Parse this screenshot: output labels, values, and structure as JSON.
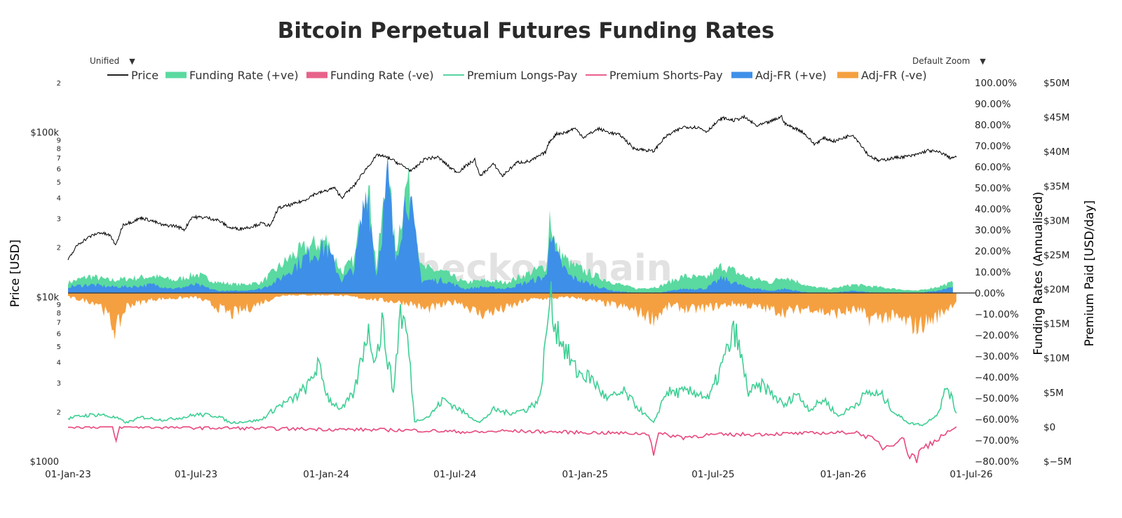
{
  "controls": {
    "mode_select": "Unified",
    "zoom_select": "Default Zoom"
  },
  "watermark": "checkonchain",
  "colors": {
    "price": "#000000",
    "funding_pos": "#5ad9a0",
    "funding_neg": "#e8628a",
    "premium_longs": "#3ecf94",
    "premium_shorts": "#e8497c",
    "adj_pos": "#3e8fe8",
    "adj_neg": "#f5a040",
    "zero_line": "#444444"
  },
  "chart_data": {
    "type": "line",
    "title": "Bitcoin Perpetual Futures Funding Rates",
    "legend_position": "top",
    "legend": [
      "Price",
      "Funding Rate (+ve)",
      "Funding Rate (-ve)",
      "Premium Longs-Pay",
      "Premium Shorts-Pay",
      "Adj-FR (+ve)",
      "Adj-FR (-ve)"
    ],
    "x_axis": {
      "ticks": [
        "01-Jan-23",
        "01-Jul-23",
        "01-Jan-24",
        "01-Jul-24",
        "01-Jan-25",
        "01-Jul-25",
        "01-Jan-26",
        "01-Jul-26"
      ],
      "range": [
        "2023-01-01",
        "2026-07-01"
      ]
    },
    "y_axis_price": {
      "label": "Price [USD]",
      "scale": "log",
      "range": [
        1000,
        200000
      ],
      "major_ticks": [
        {
          "value": 1000,
          "label": "$1000"
        },
        {
          "value": 10000,
          "label": "$10k"
        },
        {
          "value": 100000,
          "label": "$100k"
        }
      ],
      "minor_ticks": [
        {
          "value": 2000,
          "label": "2"
        },
        {
          "value": 3000,
          "label": "3"
        },
        {
          "value": 4000,
          "label": "4"
        },
        {
          "value": 5000,
          "label": "5"
        },
        {
          "value": 6000,
          "label": "6"
        },
        {
          "value": 7000,
          "label": "7"
        },
        {
          "value": 8000,
          "label": "8"
        },
        {
          "value": 9000,
          "label": "9"
        },
        {
          "value": 20000,
          "label": "2"
        },
        {
          "value": 30000,
          "label": "3"
        },
        {
          "value": 40000,
          "label": "4"
        },
        {
          "value": 50000,
          "label": "5"
        },
        {
          "value": 60000,
          "label": "6"
        },
        {
          "value": 70000,
          "label": "7"
        },
        {
          "value": 80000,
          "label": "8"
        },
        {
          "value": 90000,
          "label": "9"
        },
        {
          "value": 200000,
          "label": "2"
        }
      ]
    },
    "y_axis_funding": {
      "label": "Funding Rates (Annualised)",
      "range": [
        -80,
        100
      ],
      "ticks": [
        "100.00%",
        "90.00%",
        "80.00%",
        "70.00%",
        "60.00%",
        "50.00%",
        "40.00%",
        "30.00%",
        "20.00%",
        "10.00%",
        "0.00%",
        "−10.00%",
        "−20.00%",
        "−30.00%",
        "−40.00%",
        "−50.00%",
        "−60.00%",
        "−70.00%",
        "−80.00%"
      ]
    },
    "y_axis_premium": {
      "label": "Premium Paid [USD/day]",
      "range": [
        -5,
        50
      ],
      "ticks": [
        "$50M",
        "$45M",
        "$40M",
        "$35M",
        "$30M",
        "$25M",
        "$20M",
        "$15M",
        "$10M",
        "$5M",
        "$0",
        "$−5M"
      ]
    },
    "price_series": {
      "name": "Price",
      "x": [
        "2023-01-01",
        "2023-01-15",
        "2023-02-01",
        "2023-02-15",
        "2023-03-01",
        "2023-03-10",
        "2023-03-20",
        "2023-04-01",
        "2023-04-15",
        "2023-05-01",
        "2023-05-15",
        "2023-06-01",
        "2023-06-15",
        "2023-06-25",
        "2023-07-15",
        "2023-08-01",
        "2023-08-18",
        "2023-09-01",
        "2023-09-15",
        "2023-10-01",
        "2023-10-15",
        "2023-10-25",
        "2023-11-15",
        "2023-12-01",
        "2023-12-15",
        "2024-01-01",
        "2024-01-12",
        "2024-01-23",
        "2024-02-10",
        "2024-02-28",
        "2024-03-14",
        "2024-04-01",
        "2024-04-15",
        "2024-05-01",
        "2024-05-20",
        "2024-06-07",
        "2024-06-24",
        "2024-07-05",
        "2024-07-29",
        "2024-08-05",
        "2024-08-25",
        "2024-09-06",
        "2024-09-27",
        "2024-10-15",
        "2024-10-29",
        "2024-11-06",
        "2024-11-12",
        "2024-11-22",
        "2024-12-05",
        "2024-12-17",
        "2024-12-30",
        "2025-01-20",
        "2025-02-03",
        "2025-02-20",
        "2025-03-10",
        "2025-04-08",
        "2025-04-25",
        "2025-05-21",
        "2025-06-10",
        "2025-06-22",
        "2025-07-14",
        "2025-07-30",
        "2025-08-14",
        "2025-09-01",
        "2025-09-20",
        "2025-10-06",
        "2025-10-11",
        "2025-11-04",
        "2025-11-21",
        "2025-12-05",
        "2025-12-20",
        "2026-01-14",
        "2026-02-05",
        "2026-02-20",
        "2026-03-15",
        "2026-04-10",
        "2026-05-01",
        "2026-05-20",
        "2026-06-01",
        "2026-06-10"
      ],
      "y": [
        16600,
        20800,
        23200,
        24600,
        23600,
        20500,
        27500,
        28500,
        30200,
        28800,
        27200,
        27000,
        25600,
        30500,
        30300,
        29200,
        26200,
        25900,
        26500,
        27900,
        27000,
        34500,
        36500,
        38500,
        42000,
        44000,
        46000,
        40000,
        47500,
        61000,
        73000,
        69000,
        63500,
        58000,
        69000,
        70500,
        61000,
        57000,
        68000,
        54000,
        64000,
        54000,
        65500,
        66500,
        72000,
        75500,
        88000,
        98000,
        99500,
        106000,
        93000,
        105000,
        100000,
        96000,
        80000,
        76500,
        94000,
        108000,
        107000,
        101000,
        122000,
        118000,
        123500,
        109000,
        116000,
        124500,
        112000,
        101000,
        84500,
        92000,
        88000,
        97000,
        73000,
        67000,
        70000,
        72000,
        77500,
        75000,
        70000,
        70500
      ]
    },
    "funding_rate_series": {
      "name": "Funding Rate (+ve)",
      "unit": "% annualised",
      "x": [
        "2023-01-01",
        "2023-02-01",
        "2023-03-01",
        "2023-04-01",
        "2023-05-01",
        "2023-06-01",
        "2023-07-01",
        "2023-08-01",
        "2023-09-01",
        "2023-10-01",
        "2023-10-25",
        "2023-11-15",
        "2023-12-07",
        "2024-01-01",
        "2024-01-23",
        "2024-02-10",
        "2024-02-28",
        "2024-03-12",
        "2024-03-28",
        "2024-04-08",
        "2024-04-25",
        "2024-05-15",
        "2024-06-15",
        "2024-07-15",
        "2024-08-10",
        "2024-09-10",
        "2024-10-10",
        "2024-11-08",
        "2024-11-12",
        "2024-11-20",
        "2024-12-10",
        "2025-01-10",
        "2025-02-10",
        "2025-03-15",
        "2025-04-15",
        "2025-05-20",
        "2025-06-20",
        "2025-07-14",
        "2025-08-15",
        "2025-09-20",
        "2025-10-10",
        "2025-11-15",
        "2025-12-15",
        "2026-01-15",
        "2026-02-15",
        "2026-03-15",
        "2026-04-15",
        "2026-05-15",
        "2026-06-05"
      ],
      "y": [
        5,
        8,
        6,
        7,
        8,
        6,
        9,
        5,
        4,
        5,
        12,
        18,
        22,
        25,
        10,
        16,
        55,
        12,
        58,
        20,
        54,
        12,
        10,
        5,
        6,
        5,
        9,
        13,
        38,
        22,
        14,
        9,
        5,
        2,
        3,
        8,
        7,
        13,
        8,
        5,
        8,
        3,
        2,
        4,
        3,
        2,
        1,
        3,
        5
      ]
    },
    "adj_funding_series": {
      "name": "Adj-FR (+ve)",
      "unit": "% annualised",
      "x": [
        "2023-01-01",
        "2023-02-01",
        "2023-03-01",
        "2023-04-01",
        "2023-05-01",
        "2023-06-01",
        "2023-07-01",
        "2023-08-01",
        "2023-09-01",
        "2023-10-01",
        "2023-10-25",
        "2023-11-15",
        "2023-12-07",
        "2024-01-01",
        "2024-01-23",
        "2024-02-10",
        "2024-02-28",
        "2024-03-12",
        "2024-03-28",
        "2024-04-08",
        "2024-04-25",
        "2024-05-15",
        "2024-06-15",
        "2024-07-15",
        "2024-08-10",
        "2024-09-10",
        "2024-10-10",
        "2024-11-08",
        "2024-11-12",
        "2024-11-20",
        "2024-12-10",
        "2025-01-10",
        "2025-02-10",
        "2025-03-15",
        "2025-04-15",
        "2025-05-20",
        "2025-06-20",
        "2025-07-14",
        "2025-08-15",
        "2025-09-20",
        "2025-10-10",
        "2025-11-15",
        "2025-12-15",
        "2026-01-15",
        "2026-02-15",
        "2026-03-15",
        "2026-04-15",
        "2026-05-15",
        "2026-06-05"
      ],
      "y": [
        3,
        4,
        3,
        3,
        4,
        2,
        4,
        1,
        1,
        2,
        6,
        12,
        18,
        22,
        6,
        12,
        52,
        8,
        55,
        16,
        50,
        6,
        6,
        2,
        3,
        2,
        5,
        8,
        35,
        18,
        8,
        4,
        1,
        0,
        0,
        2,
        2,
        7,
        3,
        1,
        2,
        0,
        0,
        1,
        0,
        0,
        0,
        1,
        3
      ]
    },
    "adj_funding_neg_series": {
      "name": "Adj-FR (-ve)",
      "unit": "% annualised",
      "x": [
        "2023-01-01",
        "2023-02-15",
        "2023-03-10",
        "2023-03-25",
        "2023-05-01",
        "2023-07-01",
        "2023-08-20",
        "2023-09-15",
        "2023-10-05",
        "2023-11-01",
        "2024-01-15",
        "2024-05-01",
        "2024-05-20",
        "2024-07-05",
        "2024-08-05",
        "2024-09-06",
        "2024-10-15",
        "2024-12-15",
        "2025-01-15",
        "2025-03-01",
        "2025-04-08",
        "2025-05-01",
        "2025-06-01",
        "2025-08-01",
        "2025-10-11",
        "2025-11-15",
        "2025-12-15",
        "2026-01-20",
        "2026-02-05",
        "2026-03-01",
        "2026-03-25",
        "2026-04-15",
        "2026-05-10",
        "2026-06-10"
      ],
      "y": [
        -2,
        -5,
        -18,
        -6,
        -3,
        -2,
        -10,
        -7,
        -4,
        -1,
        -1,
        -5,
        -8,
        -4,
        -10,
        -8,
        -3,
        -2,
        -4,
        -7,
        -12,
        -6,
        -8,
        -5,
        -9,
        -7,
        -10,
        -8,
        -12,
        -11,
        -13,
        -16,
        -12,
        -4
      ]
    },
    "premium_longs_series": {
      "name": "Premium Longs-Pay",
      "unit": "USD M/day",
      "x": [
        "2023-01-01",
        "2023-01-20",
        "2023-02-15",
        "2023-03-10",
        "2023-03-25",
        "2023-04-15",
        "2023-05-15",
        "2023-06-15",
        "2023-07-01",
        "2023-08-01",
        "2023-08-18",
        "2023-09-15",
        "2023-10-01",
        "2023-10-25",
        "2023-11-15",
        "2023-12-07",
        "2023-12-20",
        "2024-01-05",
        "2024-01-23",
        "2024-02-10",
        "2024-02-28",
        "2024-03-12",
        "2024-03-20",
        "2024-04-05",
        "2024-04-15",
        "2024-04-25",
        "2024-05-05",
        "2024-05-25",
        "2024-06-15",
        "2024-07-15",
        "2024-08-05",
        "2024-08-25",
        "2024-09-15",
        "2024-10-10",
        "2024-10-29",
        "2024-11-08",
        "2024-11-12",
        "2024-11-20",
        "2024-12-05",
        "2024-12-20",
        "2025-01-10",
        "2025-02-01",
        "2025-02-25",
        "2025-03-15",
        "2025-04-08",
        "2025-04-25",
        "2025-05-20",
        "2025-06-10",
        "2025-06-25",
        "2025-07-14",
        "2025-08-01",
        "2025-08-20",
        "2025-09-10",
        "2025-09-30",
        "2025-10-11",
        "2025-10-25",
        "2025-11-15",
        "2025-12-05",
        "2025-12-25",
        "2026-01-15",
        "2026-02-05",
        "2026-02-25",
        "2026-03-15",
        "2026-04-05",
        "2026-04-25",
        "2026-05-15",
        "2026-05-28",
        "2026-06-10"
      ],
      "y": [
        1.2,
        1.6,
        1.8,
        1.3,
        0.6,
        1.4,
        1.0,
        1.4,
        1.8,
        1.6,
        0.6,
        0.8,
        1.0,
        3.0,
        4.0,
        6.0,
        9.0,
        4.0,
        2.5,
        5.0,
        14.0,
        10.0,
        15.0,
        5.0,
        17.0,
        13.0,
        0.8,
        1.5,
        4.0,
        2.0,
        0.6,
        2.5,
        2.0,
        2.5,
        4.0,
        14.0,
        19.0,
        15.0,
        11.0,
        8.0,
        7.0,
        4.0,
        5.0,
        3.0,
        0.5,
        5.0,
        5.0,
        5.0,
        4.0,
        9.0,
        14.0,
        5.0,
        6.0,
        4.0,
        3.0,
        5.0,
        2.5,
        4.0,
        1.5,
        3.0,
        5.0,
        4.5,
        2.0,
        0.5,
        0.3,
        2.0,
        6.0,
        2.0
      ]
    },
    "premium_shorts_series": {
      "name": "Premium Shorts-Pay",
      "unit": "USD M/day",
      "x": [
        "2023-01-01",
        "2023-03-05",
        "2023-03-10",
        "2023-03-15",
        "2024-05-01",
        "2024-08-05",
        "2024-09-06",
        "2025-04-01",
        "2025-04-08",
        "2025-04-15",
        "2025-05-20",
        "2025-06-22",
        "2025-10-11",
        "2026-01-20",
        "2026-02-05",
        "2026-03-01",
        "2026-03-25",
        "2026-04-05",
        "2026-04-15",
        "2026-04-25",
        "2026-05-10",
        "2026-06-10"
      ],
      "y": [
        0,
        0,
        -2.2,
        0,
        -0.5,
        -0.8,
        -0.6,
        -1.0,
        -3.5,
        -1.0,
        -1.5,
        -1.2,
        -1.0,
        -0.8,
        -1.5,
        -3.0,
        -1.5,
        -4.0,
        -4.5,
        -3.0,
        -2.0,
        0
      ]
    }
  }
}
